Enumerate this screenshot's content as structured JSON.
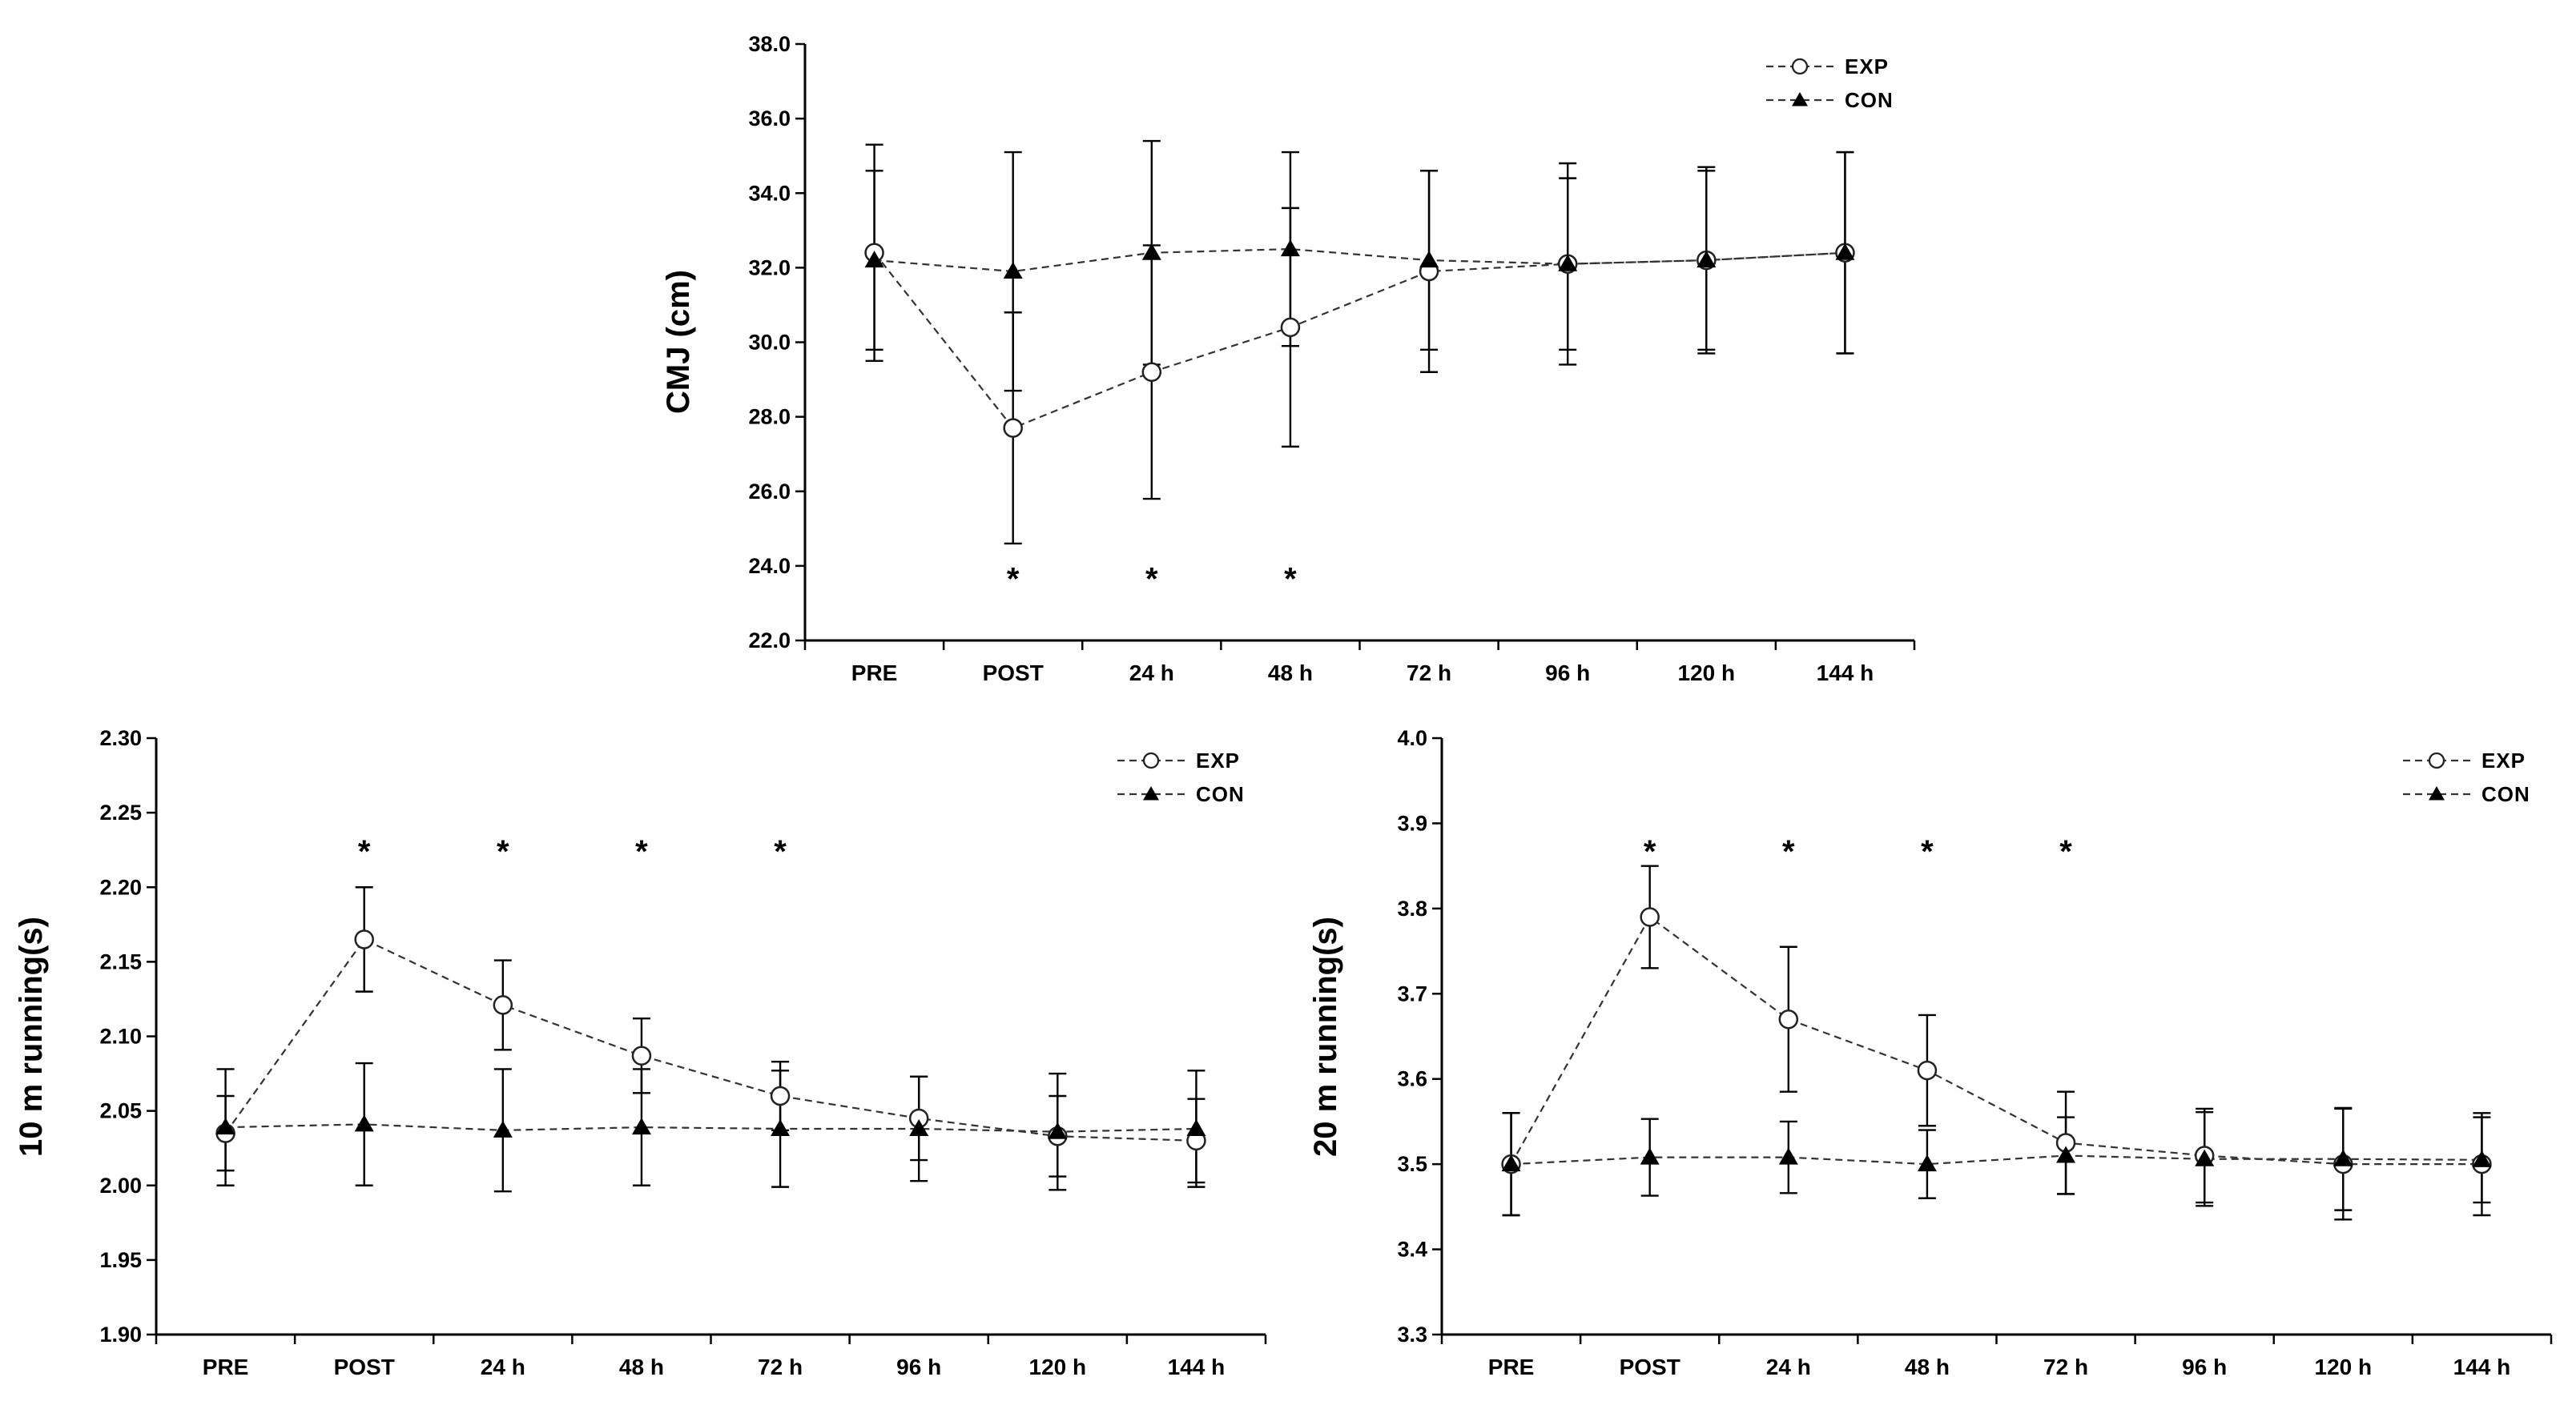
{
  "chart_data": [
    {
      "type": "line",
      "id": "cmj",
      "title": "",
      "xlabel": "",
      "ylabel": "CMJ (cm)",
      "categories": [
        "PRE",
        "POST",
        "24 h",
        "48 h",
        "72 h",
        "96 h",
        "120 h",
        "144 h"
      ],
      "ylim": [
        22.0,
        38.0
      ],
      "ytick_step": 2.0,
      "ytick_decimals": 1,
      "legend_position": "top-right",
      "series": [
        {
          "name": "EXP",
          "marker": "open-circle",
          "values": [
            32.4,
            27.7,
            29.2,
            30.4,
            31.9,
            32.1,
            32.2,
            32.4
          ],
          "errors": [
            2.9,
            3.1,
            3.4,
            3.2,
            2.7,
            2.7,
            2.4,
            2.7
          ]
        },
        {
          "name": "CON",
          "marker": "filled-triangle",
          "values": [
            32.2,
            31.9,
            32.4,
            32.5,
            32.2,
            32.1,
            32.2,
            32.4
          ],
          "errors": [
            2.4,
            3.2,
            3.0,
            2.6,
            2.4,
            2.3,
            2.5,
            2.7
          ]
        }
      ],
      "significance": {
        "symbol": "*",
        "categories": [
          "POST",
          "24 h",
          "48 h"
        ]
      }
    },
    {
      "type": "line",
      "id": "run10",
      "title": "",
      "xlabel": "",
      "ylabel": "10 m running(s)",
      "categories": [
        "PRE",
        "POST",
        "24 h",
        "48 h",
        "72 h",
        "96 h",
        "120 h",
        "144 h"
      ],
      "ylim": [
        1.9,
        2.3
      ],
      "ytick_step": 0.05,
      "ytick_decimals": 2,
      "legend_position": "top-right",
      "series": [
        {
          "name": "EXP",
          "marker": "open-circle",
          "values": [
            2.035,
            2.165,
            2.121,
            2.087,
            2.06,
            2.045,
            2.033,
            2.03
          ],
          "errors": [
            0.025,
            0.035,
            0.03,
            0.025,
            0.023,
            0.028,
            0.027,
            0.028
          ]
        },
        {
          "name": "CON",
          "marker": "filled-triangle",
          "values": [
            2.039,
            2.041,
            2.037,
            2.039,
            2.038,
            2.038,
            2.036,
            2.038
          ],
          "errors": [
            0.039,
            0.041,
            0.041,
            0.039,
            0.039,
            0.035,
            0.039,
            0.039
          ]
        }
      ],
      "significance": {
        "symbol": "*",
        "categories": [
          "POST",
          "24 h",
          "48 h",
          "72 h"
        ]
      }
    },
    {
      "type": "line",
      "id": "run20",
      "title": "",
      "xlabel": "",
      "ylabel": "20 m running(s)",
      "categories": [
        "PRE",
        "POST",
        "24 h",
        "48 h",
        "72 h",
        "96 h",
        "120 h",
        "144 h"
      ],
      "ylim": [
        3.3,
        4.0
      ],
      "ytick_step": 0.1,
      "ytick_decimals": 1,
      "legend_position": "top-right",
      "series": [
        {
          "name": "EXP",
          "marker": "open-circle",
          "values": [
            3.5,
            3.79,
            3.67,
            3.61,
            3.525,
            3.51,
            3.5,
            3.5
          ],
          "errors": [
            0.06,
            0.06,
            0.085,
            0.065,
            0.06,
            0.055,
            0.065,
            0.06
          ]
        },
        {
          "name": "CON",
          "marker": "filled-triangle",
          "values": [
            3.5,
            3.508,
            3.508,
            3.5,
            3.51,
            3.506,
            3.506,
            3.505
          ],
          "errors": [
            0.06,
            0.045,
            0.042,
            0.04,
            0.045,
            0.055,
            0.06,
            0.05
          ]
        }
      ],
      "significance": {
        "symbol": "*",
        "categories": [
          "POST",
          "24 h",
          "48 h",
          "72 h"
        ]
      }
    }
  ]
}
